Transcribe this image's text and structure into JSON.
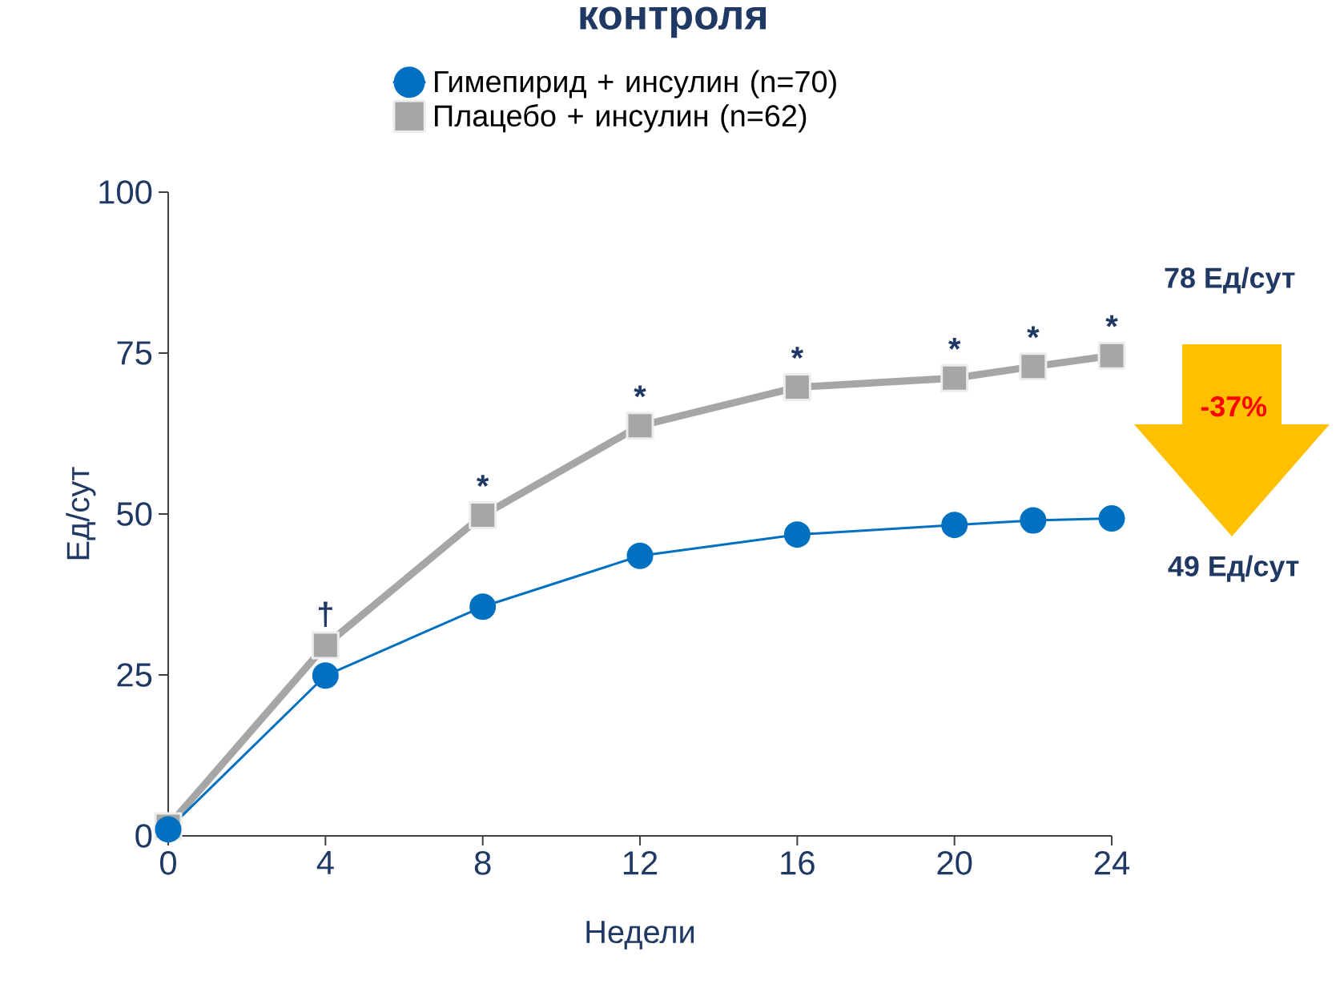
{
  "chart_data": {
    "type": "line",
    "title": "контроля",
    "xlabel": "Недели",
    "ylabel": "Ед/сут",
    "x": [
      0,
      4,
      8,
      12,
      16,
      20,
      22,
      24
    ],
    "series": [
      {
        "name": "Гимепирид + инсулин (n=70)",
        "color": "#0070c0",
        "marker": "circle",
        "values": [
          1,
          24.9,
          35.6,
          43.5,
          46.8,
          48.3,
          49,
          49.3
        ]
      },
      {
        "name": "Плацебо + инсулин (n=62)",
        "color": "#a6a6a6",
        "marker": "square",
        "values": [
          1.5,
          29.6,
          49.8,
          63.7,
          69.7,
          71.1,
          72.9,
          74.6
        ]
      }
    ],
    "xlim": [
      0,
      24
    ],
    "ylim": [
      0,
      100
    ],
    "xticks": [
      0,
      4,
      8,
      12,
      16,
      20,
      24
    ],
    "yticks": [
      0,
      25,
      50,
      75,
      100
    ],
    "legend": "top",
    "annotations": [
      "78 Ед/сут",
      "-37%",
      "49 Ед/сут",
      {
        "text": "†",
        "x": 4,
        "y": 29.6
      },
      {
        "text": "*",
        "x": 8,
        "y": 49.8
      },
      {
        "text": "*",
        "x": 12,
        "y": 63.7
      },
      {
        "text": "*",
        "x": 16,
        "y": 69.7
      },
      {
        "text": "*",
        "x": 20,
        "y": 71.1
      },
      {
        "text": "*",
        "x": 22,
        "y": 72.9
      },
      {
        "text": "*",
        "x": 24,
        "y": 74.6
      }
    ]
  }
}
